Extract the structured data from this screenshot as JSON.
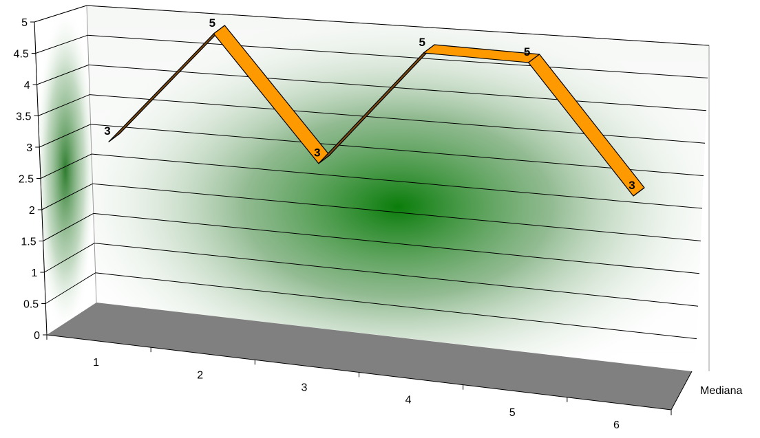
{
  "chart_data": {
    "type": "line",
    "style": "3d-ribbon",
    "categories": [
      "1",
      "2",
      "3",
      "4",
      "5",
      "6"
    ],
    "series": [
      {
        "name": "Mediana",
        "values": [
          3,
          5,
          3,
          5,
          5,
          3
        ]
      }
    ],
    "data_labels": [
      "3",
      "5",
      "3",
      "5",
      "5",
      "3"
    ],
    "ylim": [
      0,
      5
    ],
    "yticks": [
      "0",
      "0.5",
      "1",
      "1.5",
      "2",
      "2.5",
      "3",
      "3.5",
      "4",
      "4.5",
      "5"
    ],
    "grid": true,
    "legend": "none",
    "colors": {
      "ribbon_top": "#ff9900",
      "ribbon_side": "#7a4a10",
      "floor": "#808080",
      "wall_gradient": "#008000"
    }
  }
}
